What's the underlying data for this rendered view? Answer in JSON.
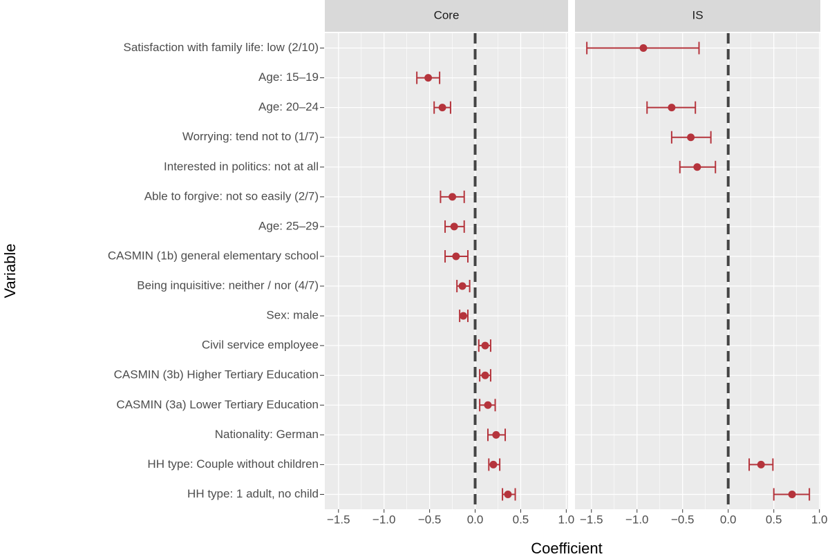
{
  "chart_data": {
    "type": "errorbar",
    "xlabel": "Coefficient",
    "ylabel": "Variable",
    "color": "#b5343c",
    "reference_line": 0,
    "grid": true,
    "categories": [
      "Satisfaction with family life: low (2/10)",
      "Age: 15–19",
      "Age: 20–24",
      "Worrying: tend not to (1/7)",
      "Interested in politics: not at all",
      "Able to forgive: not so easily (2/7)",
      "Age: 25–29",
      "CASMIN (1b) general elementary school",
      "Being inquisitive: neither / nor (4/7)",
      "Sex: male",
      "Civil service employee",
      "CASMIN (3b) Higher Tertiary Education",
      "CASMIN (3a) Lower Tertiary Education",
      "Nationality: German",
      "HH type: Couple without children",
      "HH type: 1 adult, no child"
    ],
    "panels": [
      {
        "title": "Core",
        "xlim": [
          -1.65,
          1.02
        ],
        "xticks": [
          {
            "value": -1.5,
            "label": "−1.5"
          },
          {
            "value": -1,
            "label": "−1.0"
          },
          {
            "value": -0.5,
            "label": "−0.5"
          },
          {
            "value": 0,
            "label": "0.0"
          },
          0.5,
          {
            "value": 1,
            "label": "1.0"
          }
        ],
        "values": [
          null,
          -0.515,
          -0.36,
          null,
          null,
          -0.25,
          -0.23,
          -0.21,
          -0.14,
          -0.13,
          0.11,
          0.11,
          0.14,
          0.23,
          0.2,
          0.36
        ],
        "lower": [
          null,
          -0.64,
          -0.45,
          null,
          null,
          -0.38,
          -0.33,
          -0.33,
          -0.2,
          -0.17,
          0.04,
          0.05,
          0.05,
          0.14,
          0.15,
          0.3
        ],
        "upper": [
          null,
          -0.39,
          -0.27,
          null,
          null,
          -0.12,
          -0.12,
          -0.08,
          -0.06,
          -0.08,
          0.17,
          0.17,
          0.22,
          0.33,
          0.27,
          0.44
        ]
      },
      {
        "title": "IS",
        "xlim": [
          -1.68,
          1.01
        ],
        "xticks": [
          {
            "value": -1.5,
            "label": "−1.5"
          },
          {
            "value": -1,
            "label": "−1.0"
          },
          {
            "value": -0.5,
            "label": "−0.5"
          },
          {
            "value": 0,
            "label": "0.0"
          },
          0.5,
          {
            "value": 1,
            "label": "1.0"
          }
        ],
        "values": [
          -0.93,
          null,
          -0.62,
          -0.41,
          -0.34,
          null,
          null,
          null,
          null,
          null,
          null,
          null,
          null,
          null,
          0.36,
          0.7
        ],
        "lower": [
          -1.55,
          null,
          -0.89,
          -0.62,
          -0.53,
          null,
          null,
          null,
          null,
          null,
          null,
          null,
          null,
          null,
          0.23,
          0.5
        ],
        "upper": [
          -0.32,
          null,
          -0.36,
          -0.19,
          -0.14,
          null,
          null,
          null,
          null,
          null,
          null,
          null,
          null,
          null,
          0.49,
          0.89
        ]
      }
    ]
  }
}
